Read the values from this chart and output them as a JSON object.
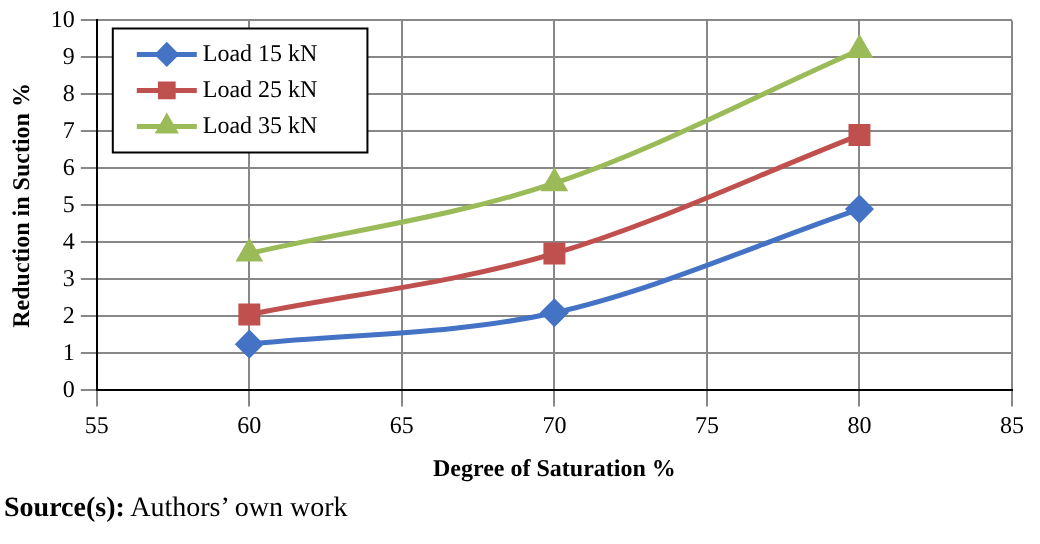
{
  "chart_data": {
    "type": "line",
    "xlabel": "Degree of Saturation %",
    "ylabel": "Reduction in Suction %",
    "x": [
      60,
      70,
      80
    ],
    "series": [
      {
        "name": "Load 15 kN",
        "color": "#4472c4",
        "marker": "diamond",
        "values": [
          1.25,
          2.1,
          4.9
        ]
      },
      {
        "name": "Load 25 kN",
        "color": "#c0504d",
        "marker": "square",
        "values": [
          2.05,
          3.7,
          6.9
        ]
      },
      {
        "name": "Load 35 kN",
        "color": "#9bbb59",
        "marker": "triangle",
        "values": [
          3.7,
          5.6,
          9.2
        ]
      }
    ],
    "xlim": [
      55,
      85
    ],
    "xticks": [
      55,
      60,
      65,
      70,
      75,
      80,
      85
    ],
    "ylim": [
      0,
      10
    ],
    "yticks": [
      0,
      1,
      2,
      3,
      4,
      5,
      6,
      7,
      8,
      9,
      10
    ],
    "grid": true,
    "legend": "top left",
    "annotations": [
      "Source(s): Authors’ own work"
    ]
  }
}
